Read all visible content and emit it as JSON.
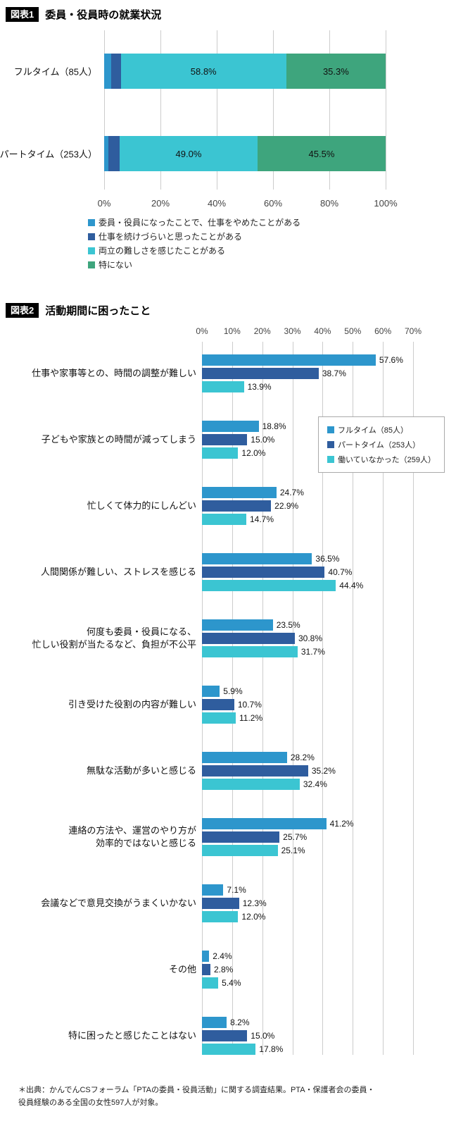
{
  "colors": {
    "fulltime_blue": "#2D96CC",
    "parttime_darkblue": "#2F5D9E",
    "notworking_cyan": "#3BC5D2",
    "none_green": "#3EA57D",
    "grid": "#cccccc",
    "badge_bg": "#000000",
    "badge_text": "#ffffff"
  },
  "chart_data": [
    {
      "type": "bar",
      "subtype": "stacked-horizontal",
      "badge": "図表1",
      "title": "委員・役員時の就業状況",
      "xlim": [
        0,
        100
      ],
      "x_ticks": [
        "0%",
        "20%",
        "40%",
        "60%",
        "80%",
        "100%"
      ],
      "grid": true,
      "legend_position": "bottom-left",
      "categories": [
        "フルタイム（85人）",
        "パートタイム（253人）"
      ],
      "series": [
        {
          "name": "委員・役員になったことで、仕事をやめたことがある",
          "color": "#2D96CC",
          "values": [
            2.4,
            1.6
          ]
        },
        {
          "name": "仕事を続けづらいと思ったことがある",
          "color": "#2F5D9E",
          "values": [
            3.5,
            3.9
          ]
        },
        {
          "name": "両立の難しさを感じたことがある",
          "color": "#3BC5D2",
          "values": [
            58.8,
            49.0
          ]
        },
        {
          "name": "特にない",
          "color": "#3EA57D",
          "values": [
            35.3,
            45.5
          ]
        }
      ],
      "visible_value_labels": [
        "58.8%",
        "35.3%",
        "49.0%",
        "45.5%"
      ],
      "label_min_value_to_show": 10
    },
    {
      "type": "bar",
      "subtype": "grouped-horizontal",
      "badge": "図表2",
      "title": "活動期間に困ったこと",
      "xlim": [
        0,
        70
      ],
      "x_ticks": [
        "0%",
        "10%",
        "20%",
        "30%",
        "40%",
        "50%",
        "60%",
        "70%"
      ],
      "grid": true,
      "legend_position": "inside-top-right",
      "legend": [
        {
          "name": "フルタイム（85人）",
          "color": "#2D96CC"
        },
        {
          "name": "パートタイム（253人）",
          "color": "#2F5D9E"
        },
        {
          "name": "働いていなかった（259人）",
          "color": "#3BC5D2"
        }
      ],
      "categories": [
        "仕事や家事等との、時間の調整が難しい",
        "子どもや家族との時間が減ってしまう",
        "忙しくて体力的にしんどい",
        "人間関係が難しい、ストレスを感じる",
        "何度も委員・役員になる、\n忙しい役割が当たるなど、負担が不公平",
        "引き受けた役割の内容が難しい",
        "無駄な活動が多いと感じる",
        "連絡の方法や、運営のやり方が\n効率的ではないと感じる",
        "会議などで意見交換がうまくいかない",
        "その他",
        "特に困ったと感じたことはない"
      ],
      "series": [
        {
          "name": "フルタイム（85人）",
          "color": "#2D96CC",
          "values": [
            57.6,
            18.8,
            24.7,
            36.5,
            23.5,
            5.9,
            28.2,
            41.2,
            7.1,
            2.4,
            8.2
          ]
        },
        {
          "name": "パートタイム（253人）",
          "color": "#2F5D9E",
          "values": [
            38.7,
            15.0,
            22.9,
            40.7,
            30.8,
            10.7,
            35.2,
            25.7,
            12.3,
            2.8,
            15.0
          ]
        },
        {
          "name": "働いていなかった（259人）",
          "color": "#3BC5D2",
          "values": [
            13.9,
            12.0,
            14.7,
            44.4,
            31.7,
            11.2,
            32.4,
            25.1,
            12.0,
            5.4,
            17.8
          ]
        }
      ]
    }
  ],
  "footer": {
    "note_line1": "＊出典：かんでんCSフォーラム「PTAの委員・役員活動」に関する調査結果。PTA・保護者会の委員・",
    "note_line2": "役員経験のある全国の女性597人が対象。"
  }
}
